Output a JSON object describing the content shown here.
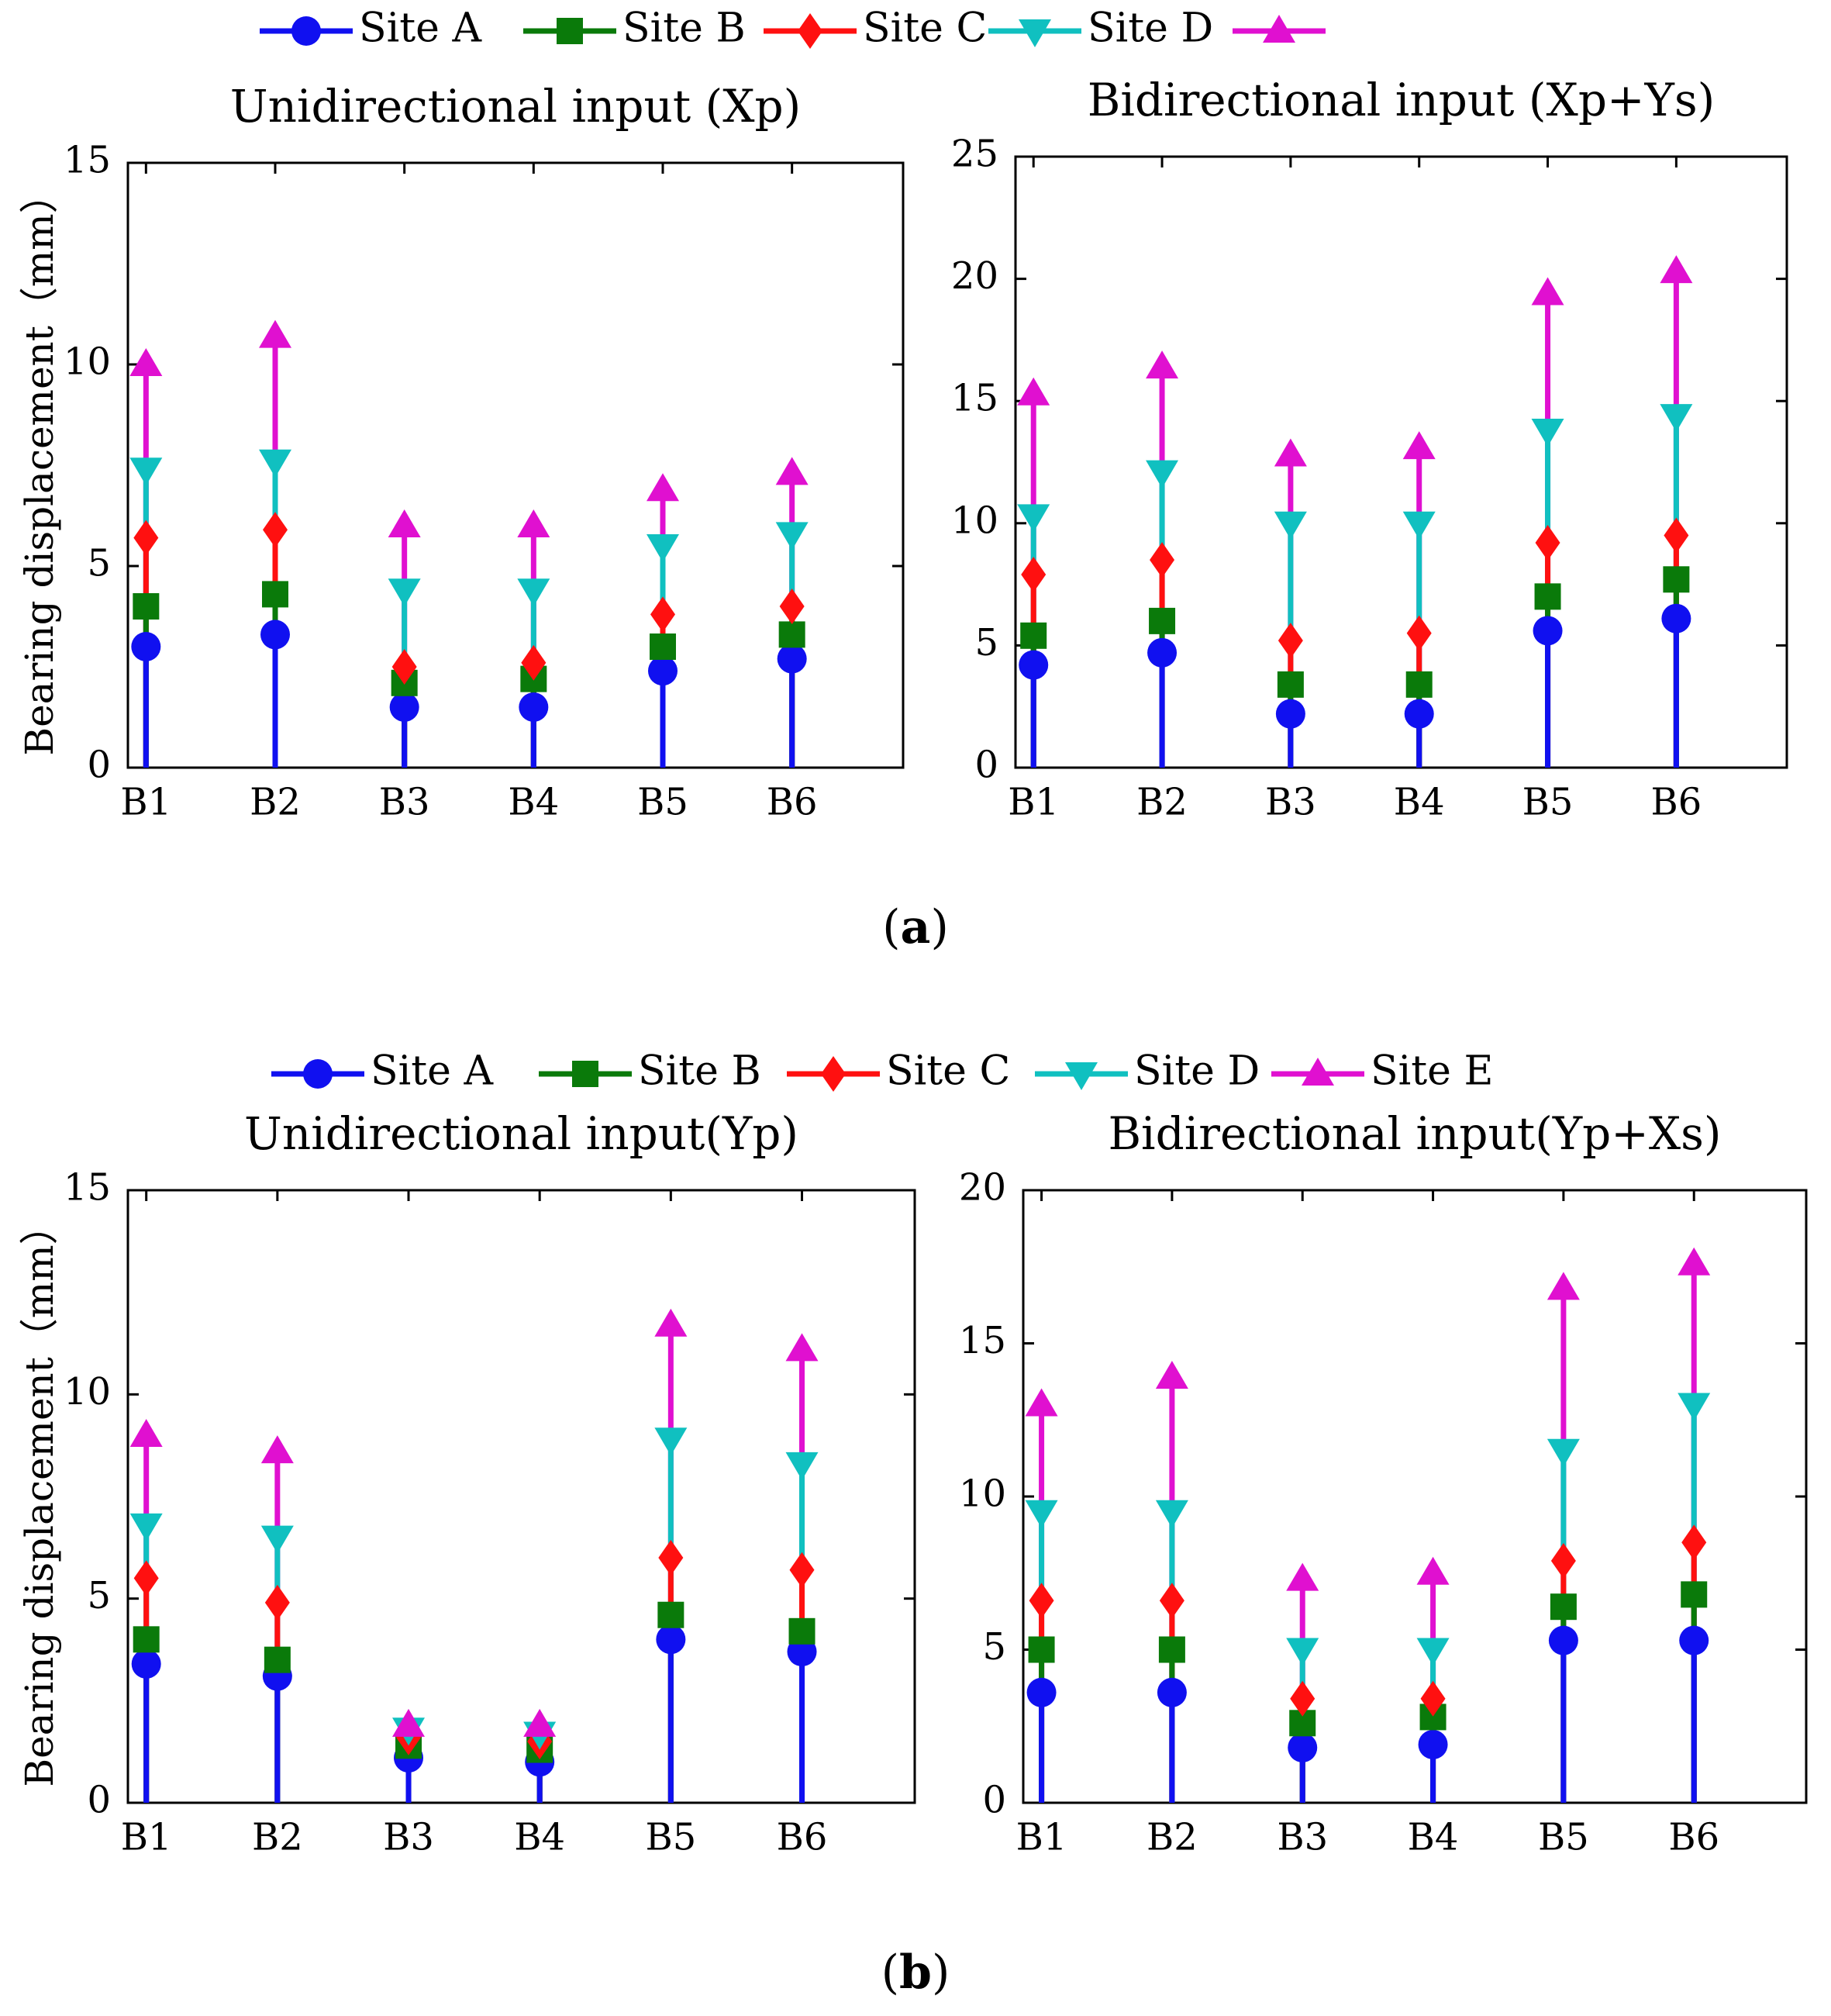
{
  "colors": {
    "Site A": "#1010f0",
    "Site B": "#0a7a0a",
    "Site C": "#ff1010",
    "Site D": "#10c0c0",
    "Site E": "#e010d0"
  },
  "panels": [
    {
      "label": "a",
      "legend": [
        "Site A",
        "Site B",
        "Site C",
        "Site D",
        ""
      ]
    },
    {
      "label": "b",
      "legend": [
        "Site A",
        "Site B",
        "Site C",
        "Site D",
        "Site E"
      ]
    }
  ],
  "chart_data": [
    {
      "type": "scatter",
      "title": "Unidirectional input (Xp)",
      "ylabel": "Bearing displacement（mm）",
      "categories": [
        "B1",
        "B2",
        "B3",
        "B4",
        "B5",
        "B6"
      ],
      "ylim": [
        0,
        15
      ],
      "yticks": [
        0,
        5,
        10,
        15
      ],
      "series": [
        {
          "name": "Site A",
          "marker": "circle",
          "values": [
            3.0,
            3.3,
            1.5,
            1.5,
            2.4,
            2.7
          ]
        },
        {
          "name": "Site B",
          "marker": "square",
          "values": [
            4.0,
            4.3,
            2.1,
            2.2,
            3.0,
            3.3
          ]
        },
        {
          "name": "Site C",
          "marker": "diamond",
          "values": [
            5.7,
            5.9,
            2.5,
            2.6,
            3.8,
            4.0
          ]
        },
        {
          "name": "Site D",
          "marker": "triangle-down",
          "values": [
            7.4,
            7.6,
            4.4,
            4.4,
            5.5,
            5.8
          ]
        },
        {
          "name": "",
          "marker": "triangle-up",
          "values": [
            10.0,
            10.7,
            6.0,
            6.0,
            6.9,
            7.3
          ]
        }
      ]
    },
    {
      "type": "scatter",
      "title": "Bidirectional input (Xp+Ys)",
      "ylabel": "",
      "categories": [
        "B1",
        "B2",
        "B3",
        "B4",
        "B5",
        "B6"
      ],
      "ylim": [
        0,
        25
      ],
      "yticks": [
        0,
        5,
        10,
        15,
        20,
        25
      ],
      "series": [
        {
          "name": "Site A",
          "marker": "circle",
          "values": [
            4.2,
            4.7,
            2.2,
            2.2,
            5.6,
            6.1
          ]
        },
        {
          "name": "Site B",
          "marker": "square",
          "values": [
            5.4,
            6.0,
            3.4,
            3.4,
            7.0,
            7.7
          ]
        },
        {
          "name": "Site C",
          "marker": "diamond",
          "values": [
            7.9,
            8.5,
            5.2,
            5.5,
            9.2,
            9.5
          ]
        },
        {
          "name": "Site D",
          "marker": "triangle-down",
          "values": [
            10.3,
            12.1,
            10.0,
            10.0,
            13.8,
            14.4
          ]
        },
        {
          "name": "",
          "marker": "triangle-up",
          "values": [
            15.3,
            16.4,
            12.8,
            13.1,
            19.4,
            20.3
          ]
        }
      ]
    },
    {
      "type": "scatter",
      "title": "Unidirectional input(Yp)",
      "ylabel": "Bearing displacement（mm）",
      "categories": [
        "B1",
        "B2",
        "B3",
        "B4",
        "B5",
        "B6"
      ],
      "ylim": [
        0,
        15
      ],
      "yticks": [
        0,
        5,
        10,
        15
      ],
      "series": [
        {
          "name": "Site A",
          "marker": "circle",
          "values": [
            3.4,
            3.1,
            1.1,
            1.0,
            4.0,
            3.7
          ]
        },
        {
          "name": "Site B",
          "marker": "square",
          "values": [
            4.0,
            3.5,
            1.4,
            1.3,
            4.6,
            4.2
          ]
        },
        {
          "name": "Site C",
          "marker": "diamond",
          "values": [
            5.5,
            4.9,
            1.6,
            1.5,
            6.0,
            5.7
          ]
        },
        {
          "name": "Site D",
          "marker": "triangle-down",
          "values": [
            6.8,
            6.5,
            1.8,
            1.7,
            8.9,
            8.3
          ]
        },
        {
          "name": "Site E",
          "marker": "triangle-up",
          "values": [
            9.0,
            8.6,
            1.9,
            1.9,
            11.7,
            11.1
          ]
        }
      ]
    },
    {
      "type": "scatter",
      "title": "Bidirectional input(Yp+Xs)",
      "ylabel": "",
      "categories": [
        "B1",
        "B2",
        "B3",
        "B4",
        "B5",
        "B6"
      ],
      "ylim": [
        0,
        20
      ],
      "yticks": [
        0,
        5,
        10,
        15,
        20
      ],
      "series": [
        {
          "name": "Site A",
          "marker": "circle",
          "values": [
            3.6,
            3.6,
            1.8,
            1.9,
            5.3,
            5.3
          ]
        },
        {
          "name": "Site B",
          "marker": "square",
          "values": [
            5.0,
            5.0,
            2.6,
            2.8,
            6.4,
            6.8
          ]
        },
        {
          "name": "Site C",
          "marker": "diamond",
          "values": [
            6.6,
            6.6,
            3.4,
            3.4,
            7.9,
            8.5
          ]
        },
        {
          "name": "Site D",
          "marker": "triangle-down",
          "values": [
            9.5,
            9.5,
            5.0,
            5.0,
            11.5,
            13.0
          ]
        },
        {
          "name": "Site E",
          "marker": "triangle-up",
          "values": [
            13.0,
            13.9,
            7.3,
            7.5,
            16.8,
            17.6
          ]
        }
      ]
    }
  ]
}
